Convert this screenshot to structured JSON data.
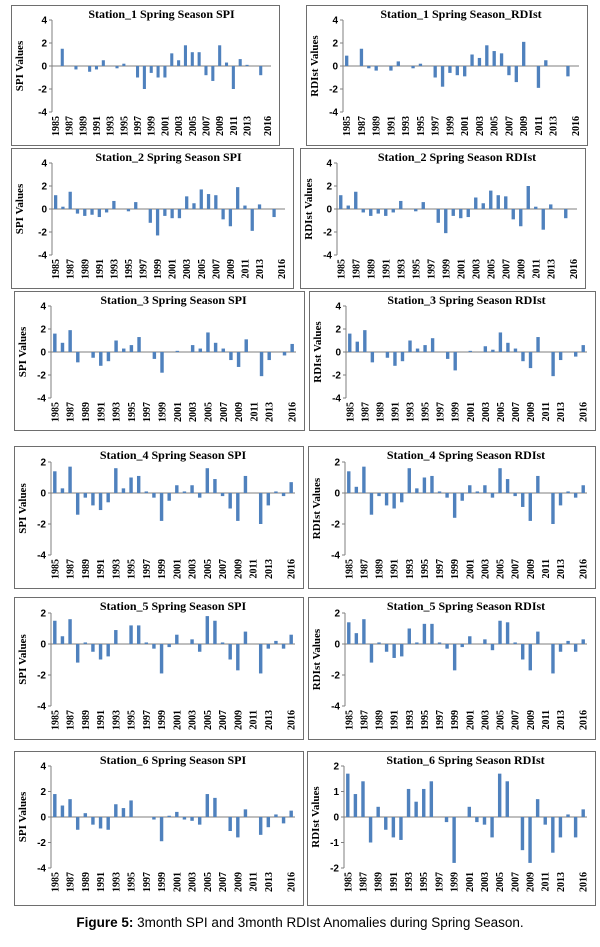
{
  "caption": {
    "label": "Figure 5:",
    "text": " 3month SPI and 3month RDIst Anomalies during Spring Season."
  },
  "style": {
    "bar_color": "#4f81bd"
  },
  "chart_data": [
    {
      "type": "bar",
      "title": "Station_1 Spring Season SPI",
      "ylabel": "SPI Values",
      "ylim": [
        -4,
        4
      ],
      "yticks": [
        4,
        2,
        0,
        -2,
        -4
      ],
      "xticks": [
        "1985",
        "1987",
        "1989",
        "1991",
        "1993",
        "1995",
        "1997",
        "1999",
        "2001",
        "2003",
        "2005",
        "2007",
        "2009",
        "2011",
        "2013",
        "2016"
      ],
      "categories": [
        "1985",
        "1986",
        "1987",
        "1988",
        "1989",
        "1990",
        "1991",
        "1992",
        "1993",
        "1994",
        "1995",
        "1996",
        "1997",
        "1998",
        "1999",
        "2000",
        "2001",
        "2002",
        "2003",
        "2004",
        "2005",
        "2006",
        "2007",
        "2008",
        "2009",
        "2010",
        "2011",
        "2012",
        "2013",
        "2014",
        "2015",
        "2016"
      ],
      "values": [
        0,
        1.5,
        0,
        -0.3,
        0,
        -0.5,
        -0.3,
        0.5,
        0,
        -0.2,
        0.2,
        0,
        -1.0,
        -2.0,
        -0.6,
        -1.0,
        -1.0,
        1.1,
        0.5,
        1.8,
        1.2,
        1.2,
        -0.8,
        -1.3,
        1.8,
        0.3,
        -2.0,
        0.6,
        0.1,
        0,
        -0.8,
        0
      ]
    },
    {
      "type": "bar",
      "title": "Station_1 Spring Season_RDIst",
      "ylabel": "RDIst Values",
      "ylim": [
        -4,
        4
      ],
      "yticks": [
        4,
        2,
        0,
        -2,
        -4
      ],
      "xticks": [
        "1985",
        "1987",
        "1989",
        "1991",
        "1993",
        "1995",
        "1997",
        "1999",
        "2001",
        "2003",
        "2005",
        "2007",
        "2009",
        "2011",
        "2013",
        "2016"
      ],
      "categories": [
        "1985",
        "1986",
        "1987",
        "1988",
        "1989",
        "1990",
        "1991",
        "1992",
        "1993",
        "1994",
        "1995",
        "1996",
        "1997",
        "1998",
        "1999",
        "2000",
        "2001",
        "2002",
        "2003",
        "2004",
        "2005",
        "2006",
        "2007",
        "2008",
        "2009",
        "2010",
        "2011",
        "2012",
        "2013",
        "2014",
        "2015",
        "2016"
      ],
      "values": [
        0.9,
        0,
        1.5,
        -0.2,
        -0.4,
        0,
        -0.4,
        0.4,
        0,
        -0.2,
        0.2,
        0,
        -1.0,
        -1.8,
        -0.6,
        -0.8,
        -0.9,
        1.0,
        0.7,
        1.8,
        1.3,
        1.1,
        -0.8,
        -1.4,
        2.1,
        0,
        -1.9,
        0.5,
        0,
        0,
        -0.9,
        0
      ]
    },
    {
      "type": "bar",
      "title": "Station_2 Spring Season SPI",
      "ylabel": "SPI Values",
      "ylim": [
        -4,
        4
      ],
      "yticks": [
        4,
        2,
        0,
        -2,
        -4
      ],
      "xticks": [
        "1985",
        "1987",
        "1989",
        "1991",
        "1993",
        "1995",
        "1997",
        "1999",
        "2001",
        "2003",
        "2005",
        "2007",
        "2009",
        "2011",
        "2013",
        "2016"
      ],
      "categories": [
        "1985",
        "1986",
        "1987",
        "1988",
        "1989",
        "1990",
        "1991",
        "1992",
        "1993",
        "1994",
        "1995",
        "1996",
        "1997",
        "1998",
        "1999",
        "2000",
        "2001",
        "2002",
        "2003",
        "2004",
        "2005",
        "2006",
        "2007",
        "2008",
        "2009",
        "2010",
        "2011",
        "2012",
        "2013",
        "2014",
        "2015",
        "2016"
      ],
      "values": [
        1.2,
        0.2,
        1.5,
        -0.4,
        -0.6,
        -0.5,
        -0.7,
        -0.3,
        0.7,
        0,
        -0.2,
        0.6,
        0,
        -1.2,
        -2.3,
        -0.6,
        -0.8,
        -0.8,
        1.1,
        0.5,
        1.7,
        1.3,
        1.2,
        -0.9,
        -1.5,
        1.9,
        0.3,
        -1.9,
        0.4,
        0,
        -0.7,
        0
      ]
    },
    {
      "type": "bar",
      "title": "Station_2 Spring Season RDIst",
      "ylabel": "RDIst Values",
      "ylim": [
        -4,
        4
      ],
      "yticks": [
        4,
        2,
        0,
        -2,
        -4
      ],
      "xticks": [
        "1985",
        "1987",
        "1989",
        "1991",
        "1993",
        "1995",
        "1997",
        "1999",
        "2001",
        "2003",
        "2005",
        "2007",
        "2009",
        "2011",
        "2013",
        "2016"
      ],
      "categories": [
        "1985",
        "1986",
        "1987",
        "1988",
        "1989",
        "1990",
        "1991",
        "1992",
        "1993",
        "1994",
        "1995",
        "1996",
        "1997",
        "1998",
        "1999",
        "2000",
        "2001",
        "2002",
        "2003",
        "2004",
        "2005",
        "2006",
        "2007",
        "2008",
        "2009",
        "2010",
        "2011",
        "2012",
        "2013",
        "2014",
        "2015",
        "2016"
      ],
      "values": [
        1.2,
        0.3,
        1.5,
        -0.3,
        -0.6,
        -0.4,
        -0.6,
        -0.3,
        0.7,
        0,
        -0.2,
        0.6,
        0,
        -1.2,
        -2.1,
        -0.6,
        -0.8,
        -0.7,
        1.0,
        0.5,
        1.6,
        1.2,
        1.1,
        -0.9,
        -1.5,
        2.0,
        0.2,
        -1.8,
        0.4,
        0,
        -0.8,
        0
      ]
    },
    {
      "type": "bar",
      "title": "Station_3 Spring Season SPI",
      "ylabel": "SPI Values",
      "ylim": [
        -4,
        4
      ],
      "yticks": [
        4,
        2,
        0,
        -2,
        -4
      ],
      "xticks": [
        "1985",
        "1987",
        "1989",
        "1991",
        "1993",
        "1995",
        "1997",
        "1999",
        "2001",
        "2003",
        "2005",
        "2007",
        "2009",
        "2011",
        "2013",
        "2016"
      ],
      "categories": [
        "1985",
        "1986",
        "1987",
        "1988",
        "1989",
        "1990",
        "1991",
        "1992",
        "1993",
        "1994",
        "1995",
        "1996",
        "1997",
        "1998",
        "1999",
        "2000",
        "2001",
        "2002",
        "2003",
        "2004",
        "2005",
        "2006",
        "2007",
        "2008",
        "2009",
        "2010",
        "2011",
        "2012",
        "2013",
        "2014",
        "2015",
        "2016"
      ],
      "values": [
        1.6,
        0.8,
        1.9,
        -0.9,
        0,
        -0.5,
        -1.2,
        -0.8,
        1.0,
        0.3,
        0.6,
        1.3,
        0,
        -0.6,
        -1.8,
        0,
        0.1,
        0,
        0.6,
        0.3,
        1.7,
        0.8,
        0.3,
        -0.7,
        -1.3,
        1.1,
        0,
        -2.1,
        -0.7,
        0,
        -0.3,
        0.7
      ]
    },
    {
      "type": "bar",
      "title": "Station_3 Spring Season RDIst",
      "ylabel": "RDIst Values",
      "ylim": [
        -4,
        4
      ],
      "yticks": [
        4,
        2,
        0,
        -2,
        -4
      ],
      "xticks": [
        "1985",
        "1987",
        "1989",
        "1991",
        "1993",
        "1995",
        "1997",
        "1999",
        "2001",
        "2003",
        "2005",
        "2007",
        "2009",
        "2011",
        "2013",
        "2016"
      ],
      "categories": [
        "1985",
        "1986",
        "1987",
        "1988",
        "1989",
        "1990",
        "1991",
        "1992",
        "1993",
        "1994",
        "1995",
        "1996",
        "1997",
        "1998",
        "1999",
        "2000",
        "2001",
        "2002",
        "2003",
        "2004",
        "2005",
        "2006",
        "2007",
        "2008",
        "2009",
        "2010",
        "2011",
        "2012",
        "2013",
        "2014",
        "2015",
        "2016"
      ],
      "values": [
        1.6,
        0.9,
        1.9,
        -0.9,
        0,
        -0.5,
        -1.2,
        -0.8,
        1.0,
        0.3,
        0.6,
        1.2,
        0,
        -0.6,
        -1.6,
        0,
        0.1,
        0,
        0.5,
        0.2,
        1.7,
        0.8,
        0.3,
        -0.8,
        -1.4,
        1.3,
        0,
        -2.1,
        -0.7,
        0,
        -0.4,
        0.6
      ]
    },
    {
      "type": "bar",
      "title": "Station_4 Spring Season SPI",
      "ylabel": "SPI Values",
      "ylim": [
        -4,
        2
      ],
      "yticks": [
        2,
        0,
        -2,
        -4
      ],
      "xticks": [
        "1985",
        "1987",
        "1989",
        "1991",
        "1993",
        "1995",
        "1997",
        "1999",
        "2001",
        "2003",
        "2005",
        "2007",
        "2009",
        "2011",
        "2013",
        "2016"
      ],
      "categories": [
        "1985",
        "1986",
        "1987",
        "1988",
        "1989",
        "1990",
        "1991",
        "1992",
        "1993",
        "1994",
        "1995",
        "1996",
        "1997",
        "1998",
        "1999",
        "2000",
        "2001",
        "2002",
        "2003",
        "2004",
        "2005",
        "2006",
        "2007",
        "2008",
        "2009",
        "2010",
        "2011",
        "2012",
        "2013",
        "2014",
        "2015",
        "2016"
      ],
      "values": [
        1.4,
        0.3,
        1.7,
        -1.4,
        -0.3,
        -0.8,
        -1.1,
        -0.6,
        1.6,
        0.3,
        1.0,
        1.1,
        0.1,
        -0.3,
        -1.8,
        -0.5,
        0.5,
        0.1,
        0.5,
        -0.3,
        1.6,
        0.9,
        -0.2,
        -1.0,
        -1.8,
        1.1,
        0,
        -2.0,
        -0.8,
        0.1,
        -0.2,
        0.7
      ]
    },
    {
      "type": "bar",
      "title": "Station_4 Spring Season RDIst",
      "ylabel": "RDIst Values",
      "ylim": [
        -4,
        2
      ],
      "yticks": [
        2,
        0,
        -2,
        -4
      ],
      "xticks": [
        "1985",
        "1987",
        "1989",
        "1991",
        "1993",
        "1995",
        "1997",
        "1999",
        "2001",
        "2003",
        "2005",
        "2007",
        "2009",
        "2011",
        "2013",
        "2016"
      ],
      "categories": [
        "1985",
        "1986",
        "1987",
        "1988",
        "1989",
        "1990",
        "1991",
        "1992",
        "1993",
        "1994",
        "1995",
        "1996",
        "1997",
        "1998",
        "1999",
        "2000",
        "2001",
        "2002",
        "2003",
        "2004",
        "2005",
        "2006",
        "2007",
        "2008",
        "2009",
        "2010",
        "2011",
        "2012",
        "2013",
        "2014",
        "2015",
        "2016"
      ],
      "values": [
        1.4,
        0.4,
        1.7,
        -1.4,
        -0.2,
        -0.8,
        -1.0,
        -0.6,
        1.6,
        0.3,
        1.0,
        1.1,
        0.1,
        -0.3,
        -1.6,
        -0.5,
        0.5,
        0.1,
        0.5,
        -0.3,
        1.6,
        0.9,
        -0.2,
        -0.9,
        -1.8,
        1.1,
        0,
        -2.0,
        -0.8,
        0.1,
        -0.3,
        0.5
      ]
    },
    {
      "type": "bar",
      "title": "Station_5 Spring Season SPI",
      "ylabel": "SPI Values",
      "ylim": [
        -4,
        2
      ],
      "yticks": [
        2,
        0,
        -2,
        -4
      ],
      "xticks": [
        "1985",
        "1987",
        "1989",
        "1991",
        "1993",
        "1995",
        "1997",
        "1999",
        "2001",
        "2003",
        "2005",
        "2007",
        "2009",
        "2011",
        "2013",
        "2016"
      ],
      "categories": [
        "1985",
        "1986",
        "1987",
        "1988",
        "1989",
        "1990",
        "1991",
        "1992",
        "1993",
        "1994",
        "1995",
        "1996",
        "1997",
        "1998",
        "1999",
        "2000",
        "2001",
        "2002",
        "2003",
        "2004",
        "2005",
        "2006",
        "2007",
        "2008",
        "2009",
        "2010",
        "2011",
        "2012",
        "2013",
        "2014",
        "2015",
        "2016"
      ],
      "values": [
        1.5,
        0.5,
        1.6,
        -1.2,
        0.1,
        -0.5,
        -1.0,
        -0.8,
        0.9,
        0,
        1.2,
        1.2,
        0.1,
        -0.3,
        -1.9,
        -0.2,
        0.6,
        0,
        0.3,
        -0.5,
        1.8,
        1.5,
        0.1,
        -1.0,
        -1.7,
        0.8,
        0,
        -1.9,
        -0.3,
        0.2,
        -0.3,
        0.6
      ]
    },
    {
      "type": "bar",
      "title": "Station_5 Spring  Season RDIst",
      "ylabel": "RDIst Values",
      "ylim": [
        -4,
        2
      ],
      "yticks": [
        2,
        0,
        -2,
        -4
      ],
      "xticks": [
        "1985",
        "1987",
        "1989",
        "1991",
        "1993",
        "1995",
        "1997",
        "1999",
        "2001",
        "2003",
        "2005",
        "2007",
        "2009",
        "2011",
        "2013",
        "2016"
      ],
      "categories": [
        "1985",
        "1986",
        "1987",
        "1988",
        "1989",
        "1990",
        "1991",
        "1992",
        "1993",
        "1994",
        "1995",
        "1996",
        "1997",
        "1998",
        "1999",
        "2000",
        "2001",
        "2002",
        "2003",
        "2004",
        "2005",
        "2006",
        "2007",
        "2008",
        "2009",
        "2010",
        "2011",
        "2012",
        "2013",
        "2014",
        "2015",
        "2016"
      ],
      "values": [
        1.4,
        0.7,
        1.6,
        -1.2,
        0.1,
        -0.5,
        -0.9,
        -0.8,
        1.0,
        0.1,
        1.3,
        1.3,
        0.1,
        -0.3,
        -1.7,
        -0.2,
        0.5,
        0,
        0.3,
        -0.4,
        1.5,
        1.4,
        0.1,
        -1.0,
        -1.7,
        0.8,
        0,
        -1.9,
        -0.5,
        0.2,
        -0.5,
        0.3
      ]
    },
    {
      "type": "bar",
      "title": "Station_6 Spring Season SPI",
      "ylabel": "SPI Values",
      "ylim": [
        -4,
        4
      ],
      "yticks": [
        4,
        2,
        0,
        -2,
        -4
      ],
      "xticks": [
        "1985",
        "1987",
        "1989",
        "1991",
        "1993",
        "1995",
        "1997",
        "1999",
        "2001",
        "2003",
        "2005",
        "2007",
        "2009",
        "2011",
        "2013",
        "2016"
      ],
      "categories": [
        "1985",
        "1986",
        "1987",
        "1988",
        "1989",
        "1990",
        "1991",
        "1992",
        "1993",
        "1994",
        "1995",
        "1996",
        "1997",
        "1998",
        "1999",
        "2000",
        "2001",
        "2002",
        "2003",
        "2004",
        "2005",
        "2006",
        "2007",
        "2008",
        "2009",
        "2010",
        "2011",
        "2012",
        "2013",
        "2014",
        "2015",
        "2016"
      ],
      "values": [
        1.8,
        0.9,
        1.4,
        -1.0,
        0.3,
        -0.6,
        -0.9,
        -1.0,
        1.0,
        0.7,
        1.3,
        0,
        0,
        -0.2,
        -1.9,
        0.1,
        0.4,
        -0.2,
        -0.3,
        -0.6,
        1.8,
        1.5,
        0,
        -1.1,
        -1.6,
        0.6,
        0,
        -1.4,
        -0.8,
        0.2,
        -0.5,
        0.5
      ]
    },
    {
      "type": "bar",
      "title": "Station_6 Spring Season RDIst",
      "ylabel": "RDIst Values",
      "ylim": [
        -2,
        2
      ],
      "yticks": [
        2,
        1,
        0,
        -1,
        -2
      ],
      "xticks": [
        "1985",
        "1987",
        "1989",
        "1991",
        "1993",
        "1995",
        "1997",
        "1999",
        "2001",
        "2003",
        "2005",
        "2007",
        "2009",
        "2011",
        "2013",
        "2016"
      ],
      "categories": [
        "1985",
        "1986",
        "1987",
        "1988",
        "1989",
        "1990",
        "1991",
        "1992",
        "1993",
        "1994",
        "1995",
        "1996",
        "1997",
        "1998",
        "1999",
        "2000",
        "2001",
        "2002",
        "2003",
        "2004",
        "2005",
        "2006",
        "2007",
        "2008",
        "2009",
        "2010",
        "2011",
        "2012",
        "2013",
        "2014",
        "2015",
        "2016"
      ],
      "values": [
        1.7,
        0.9,
        1.4,
        -1.0,
        0.4,
        -0.5,
        -0.8,
        -0.9,
        1.1,
        0.6,
        1.1,
        1.4,
        0,
        -0.2,
        -1.8,
        0,
        0.4,
        -0.2,
        -0.3,
        -0.8,
        1.7,
        1.4,
        0,
        -1.3,
        -1.8,
        0.7,
        -0.3,
        -1.4,
        -0.8,
        0.1,
        -0.8,
        0.3
      ]
    }
  ]
}
